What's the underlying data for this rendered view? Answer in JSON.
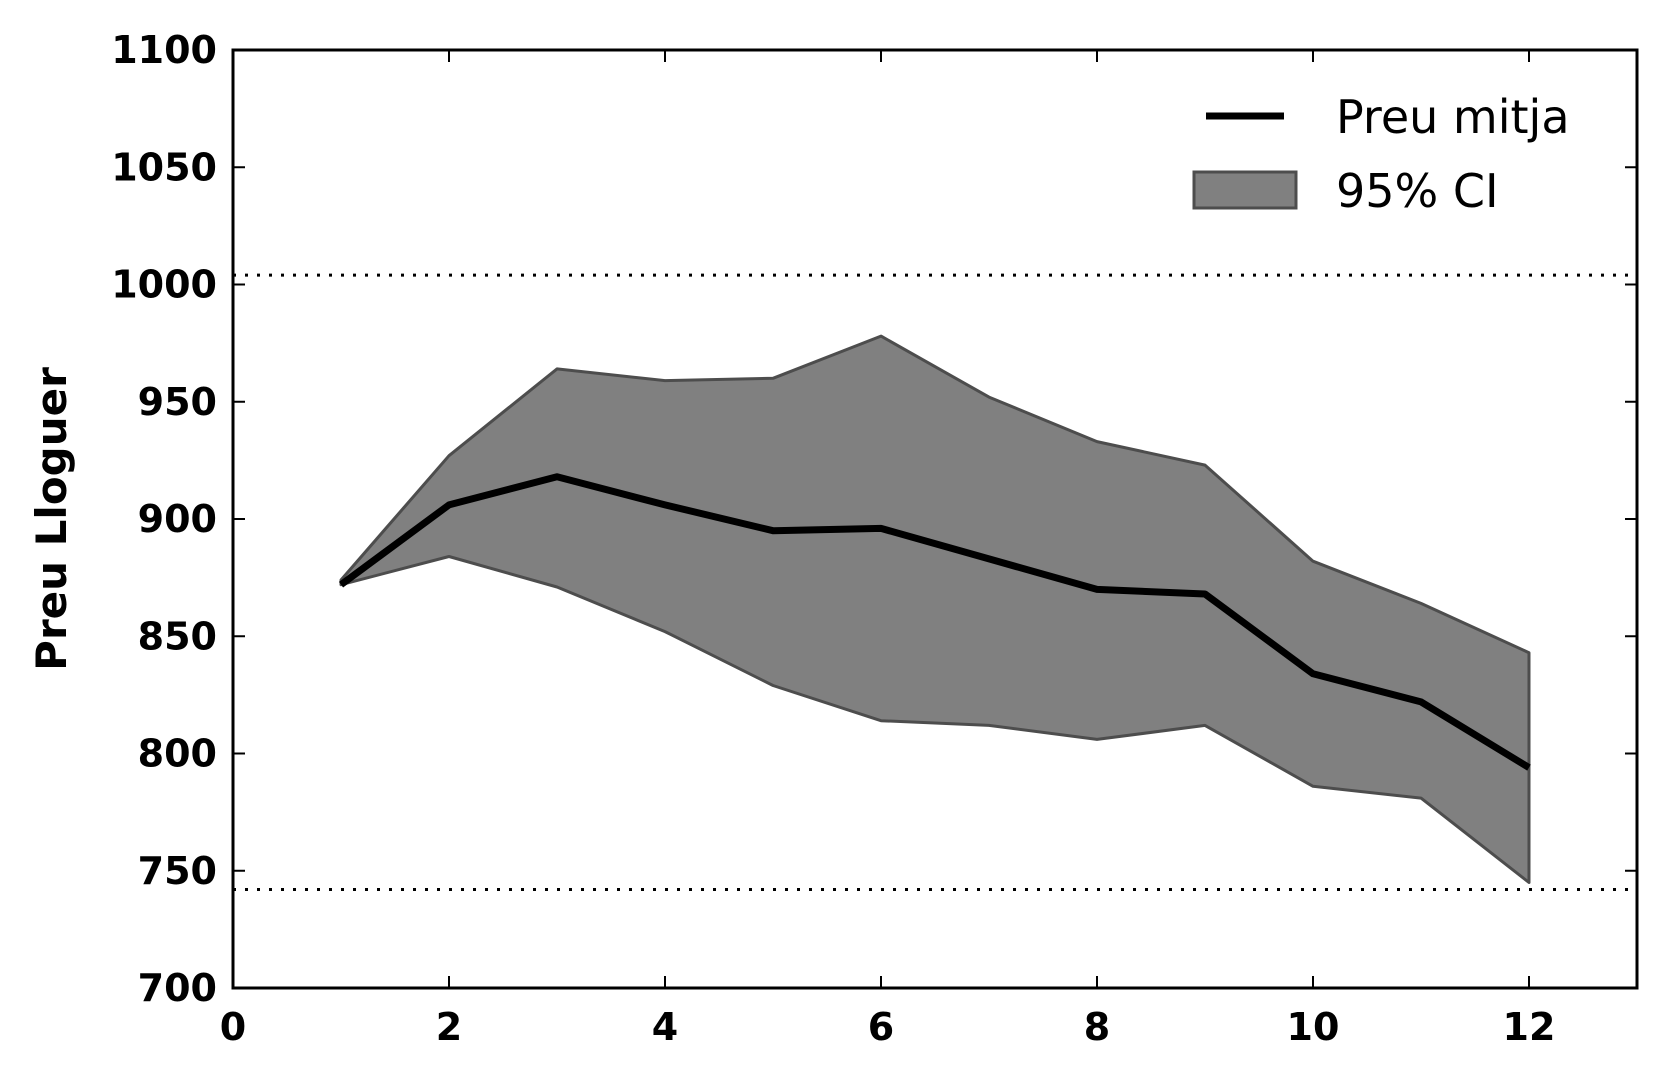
{
  "chart_data": {
    "type": "line",
    "title": "",
    "xlabel": "",
    "ylabel": "Preu Lloguer",
    "xlim": [
      0,
      13
    ],
    "ylim": [
      700,
      1100
    ],
    "xticks": [
      0,
      2,
      4,
      6,
      8,
      10,
      12
    ],
    "yticks": [
      700,
      750,
      800,
      850,
      900,
      950,
      1000,
      1050,
      1100
    ],
    "x": [
      1,
      2,
      3,
      4,
      5,
      6,
      7,
      8,
      9,
      10,
      11,
      12
    ],
    "series": [
      {
        "name": "Preu mitja",
        "values": [
          872,
          906,
          918,
          906,
          895,
          896,
          883,
          870,
          868,
          834,
          822,
          794
        ]
      }
    ],
    "ci_band": {
      "name": "95% CI",
      "lower": [
        872,
        884,
        871,
        852,
        829,
        814,
        812,
        806,
        812,
        786,
        781,
        745
      ],
      "upper": [
        874,
        927,
        964,
        959,
        960,
        978,
        952,
        933,
        923,
        882,
        864,
        843
      ]
    },
    "reference_lines": [
      1004,
      742
    ],
    "legend_position": "top-right",
    "grid": false,
    "colors": {
      "line": "#000000",
      "band_fill": "#808080",
      "band_edge": "#4d4d4d"
    }
  }
}
